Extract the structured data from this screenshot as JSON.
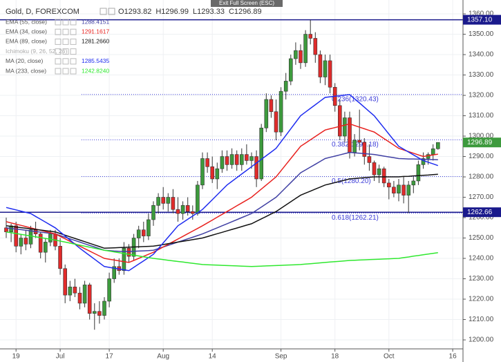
{
  "header": {
    "symbol": "Gold, D, FOREXCOM",
    "ohlc_keys": [
      "O",
      "H",
      "L",
      "C"
    ],
    "tooltip": "Exit Full Screen (ESC)",
    "hidden_study": "Ichimoku (9, 26, 52, 26)"
  },
  "chart_data": {
    "type": "candlestick",
    "categories": [
      null,
      null,
      "19",
      null,
      null,
      null,
      null,
      null,
      null,
      null,
      null,
      "Jul",
      null,
      null,
      null,
      null,
      null,
      null,
      null,
      null,
      null,
      "17",
      null,
      null,
      null,
      null,
      null,
      null,
      null,
      null,
      null,
      null,
      "Aug",
      null,
      null,
      null,
      null,
      null,
      null,
      null,
      null,
      null,
      "14",
      null,
      null,
      null,
      null,
      null,
      null,
      null,
      null,
      null,
      null,
      null,
      null,
      null,
      "Sep",
      null,
      null,
      null,
      null,
      null,
      null,
      null,
      null,
      null,
      null,
      "18",
      null,
      null,
      null,
      null,
      null,
      null,
      null,
      null,
      null,
      null,
      "Oct",
      null,
      null,
      null,
      null,
      null,
      null,
      null,
      null,
      null,
      null,
      null,
      null,
      "16"
    ],
    "open": [
      1255,
      1253,
      1256,
      1246,
      1250,
      1247,
      1254,
      1252,
      1243,
      1248,
      1252,
      1246,
      1235,
      1222,
      1226,
      1223,
      1218,
      1227,
      1213,
      1214,
      1212,
      1219,
      1230,
      1236,
      1234,
      1245,
      1241,
      1250,
      1254,
      1251,
      1259,
      1266,
      1270,
      1267,
      1270,
      1264,
      1262,
      1266,
      1263,
      1262,
      1276,
      1289,
      1285,
      1279,
      1284,
      1290,
      1286,
      1291,
      1286,
      1291,
      1288,
      1290,
      1279,
      1304,
      1318,
      1312,
      1302,
      1322,
      1327,
      1338,
      1342,
      1336,
      1350,
      1348,
      1340,
      1329,
      1337,
      1324,
      1315,
      1300,
      1309,
      1292,
      1298,
      1297,
      1290,
      1287,
      1281,
      1284,
      1277,
      1275,
      1272,
      1276,
      1271,
      1276,
      1278,
      1286,
      1289,
      1291,
      1293.82,
      null,
      null,
      null
    ],
    "high": [
      1260,
      1257,
      1258,
      1252,
      1254,
      1256,
      1258,
      1253,
      1250,
      1254,
      1254,
      1250,
      1237,
      1229,
      1230,
      1226,
      1229,
      1228,
      1218,
      1219,
      1221,
      1233,
      1240,
      1240,
      1248,
      1247,
      1252,
      1256,
      1258,
      1262,
      1268,
      1272,
      1275,
      1272,
      1274,
      1270,
      1268,
      1270,
      1266,
      1278,
      1292,
      1292,
      1290,
      1287,
      1293,
      1293,
      1294,
      1293,
      1294,
      1296,
      1292,
      1293,
      1306,
      1321,
      1320,
      1318,
      1324,
      1331,
      1340,
      1346,
      1345,
      1352,
      1357.1,
      1351,
      1342,
      1340,
      1340,
      1326,
      1318,
      1312,
      1312,
      1301,
      1313,
      1299,
      1296,
      1288,
      1286,
      1285,
      1279,
      1278,
      1279,
      1280,
      1278,
      1280,
      1288,
      1292,
      1292,
      1296,
      1296.99,
      null,
      null,
      null
    ],
    "low": [
      1250,
      1248,
      1243,
      1242,
      1244,
      1245,
      1250,
      1240,
      1238,
      1246,
      1244,
      1232,
      1218,
      1219,
      1221,
      1215,
      1216,
      1210,
      1205,
      1208,
      1210,
      1216,
      1228,
      1232,
      1232,
      1238,
      1239,
      1245,
      1248,
      1249,
      1256,
      1262,
      1264,
      1263,
      1262,
      1258,
      1259,
      1261,
      1259,
      1261,
      1274,
      1282,
      1277,
      1274,
      1282,
      1283,
      1284,
      1283,
      1283,
      1286,
      1284,
      1275,
      1278,
      1302,
      1309,
      1298,
      1300,
      1318,
      1325,
      1335,
      1333,
      1334,
      1345,
      1336,
      1326,
      1325,
      1321,
      1312,
      1298,
      1297,
      1289,
      1290,
      1293,
      1286,
      1283,
      1278,
      1277,
      1275,
      1269,
      1270,
      1268,
      1267,
      1262.2,
      1272,
      1276,
      1284,
      1286,
      1288,
      1293.33,
      null,
      null,
      null
    ],
    "close": [
      1253,
      1256,
      1246,
      1250,
      1247,
      1254,
      1252,
      1243,
      1248,
      1252,
      1246,
      1235,
      1222,
      1226,
      1223,
      1218,
      1227,
      1213,
      1214,
      1212,
      1219,
      1230,
      1236,
      1234,
      1245,
      1241,
      1250,
      1254,
      1251,
      1259,
      1266,
      1270,
      1267,
      1270,
      1264,
      1262,
      1266,
      1263,
      1262,
      1276,
      1289,
      1285,
      1279,
      1284,
      1290,
      1286,
      1291,
      1286,
      1291,
      1288,
      1290,
      1279,
      1304,
      1318,
      1312,
      1302,
      1322,
      1327,
      1338,
      1342,
      1336,
      1350,
      1348,
      1340,
      1329,
      1337,
      1324,
      1315,
      1300,
      1309,
      1292,
      1298,
      1297,
      1290,
      1287,
      1281,
      1284,
      1277,
      1275,
      1272,
      1276,
      1271,
      1276,
      1278,
      1286,
      1289,
      1291,
      1293.8,
      1296.89,
      null,
      null,
      null
    ],
    "up_color": "#3d9a3d",
    "down_color": "#e02b2b",
    "price_color": "#3d9a3d",
    "series": [
      {
        "name": "EMA (55, close)",
        "color": "#3f3fa3",
        "legend_value": "1288.4151",
        "values": [
          1255,
          1254.7,
          1254.4,
          1254.1,
          1253.8,
          1253.5,
          1253.2,
          1252.9,
          1252.6,
          1252.3,
          1252,
          1251.2,
          1250.4,
          1249.6,
          1248.8,
          1248,
          1247.2,
          1246.4,
          1245.6,
          1244.8,
          1244,
          1243.8,
          1243.6,
          1243.5,
          1243.4,
          1243.4,
          1243.5,
          1243.6,
          1243.7,
          1243.8,
          1244,
          1244.8,
          1245.6,
          1246.4,
          1247.2,
          1248,
          1248.8,
          1249.6,
          1250.4,
          1251.2,
          1252,
          1253,
          1254,
          1255,
          1256,
          1257,
          1258,
          1259,
          1260,
          1261,
          1262,
          1263.6,
          1265.2,
          1266.8,
          1268.4,
          1270,
          1272.4,
          1274.8,
          1277.2,
          1279.6,
          1282,
          1283.4,
          1284.8,
          1286.2,
          1287.6,
          1289,
          1289.6,
          1290.2,
          1290.8,
          1291.4,
          1292,
          1291.8,
          1291.6,
          1291.4,
          1291.2,
          1291,
          1290.6,
          1290.2,
          1289.8,
          1289.4,
          1289,
          1288.9,
          1288.8,
          1288.8,
          1288.7,
          1288.6,
          1288.5,
          1288.5,
          1288.4151,
          null,
          null,
          null
        ]
      },
      {
        "name": "EMA (34, close)",
        "color": "#e8211e",
        "legend_value": "1291.1617",
        "values": [
          1258,
          1257.4,
          1256.8,
          1256.2,
          1255.6,
          1255,
          1254.4,
          1253.8,
          1253.2,
          1252.6,
          1252,
          1250.8,
          1249.6,
          1248.4,
          1247.2,
          1246,
          1244.8,
          1243.6,
          1242.4,
          1241.2,
          1240,
          1239.6,
          1239.2,
          1238.8,
          1238.4,
          1238,
          1239,
          1240,
          1241,
          1242,
          1243,
          1244.3,
          1245.6,
          1246.9,
          1248.2,
          1249.5,
          1250.8,
          1252.1,
          1253.4,
          1254.7,
          1256,
          1257.4,
          1258.8,
          1260.2,
          1261.6,
          1263,
          1264.4,
          1265.8,
          1267.2,
          1268.6,
          1270,
          1272,
          1274,
          1276,
          1278,
          1280,
          1283,
          1286,
          1289,
          1292,
          1295,
          1296.6,
          1298.2,
          1299.8,
          1301.4,
          1303,
          1303.6,
          1304.2,
          1304.8,
          1305.4,
          1306,
          1305.2,
          1304.4,
          1303.6,
          1302.8,
          1302,
          1300.4,
          1298.8,
          1297.2,
          1295.6,
          1294,
          1293.2,
          1292.4,
          1291.6,
          1290.8,
          1290,
          1290.4,
          1290.8,
          1291.1617,
          null,
          null,
          null
        ]
      },
      {
        "name": "EMA (89, close)",
        "color": "#111111",
        "legend_value": "1281.2660",
        "values": [
          1256,
          1255.7,
          1255.4,
          1255.1,
          1254.8,
          1254.5,
          1254.2,
          1253.9,
          1253.6,
          1253.3,
          1253,
          1252.2,
          1251.4,
          1250.6,
          1249.8,
          1249,
          1248.2,
          1247.4,
          1246.6,
          1245.8,
          1245,
          1245.1,
          1245.2,
          1245.3,
          1245.4,
          1245.5,
          1245.6,
          1245.7,
          1245.8,
          1245.9,
          1246,
          1246.4,
          1246.8,
          1247.2,
          1247.6,
          1248,
          1248.4,
          1248.8,
          1249.2,
          1249.6,
          1250,
          1250.7,
          1251.4,
          1252.1,
          1252.8,
          1253.5,
          1254.2,
          1254.9,
          1255.6,
          1256.3,
          1257,
          1258.2,
          1259.4,
          1260.6,
          1261.8,
          1263,
          1264.6,
          1266.2,
          1267.8,
          1269.4,
          1271,
          1272,
          1273,
          1274,
          1275,
          1276,
          1276.6,
          1277.2,
          1277.8,
          1278.4,
          1279,
          1279.2,
          1279.4,
          1279.6,
          1279.8,
          1280,
          1280,
          1280,
          1280,
          1280,
          1280,
          1280.2,
          1280.3,
          1280.5,
          1280.6,
          1280.8,
          1280.9,
          1281.1,
          1281.266,
          null,
          null,
          null
        ]
      },
      {
        "name": "MA (20, close)",
        "color": "#1e2cf0",
        "legend_value": "1285.5435",
        "values": [
          1265,
          1264.4,
          1263.8,
          1263.2,
          1262.6,
          1262,
          1260.6,
          1259.2,
          1257.8,
          1256.4,
          1255,
          1253,
          1251,
          1249,
          1247,
          1245,
          1243.2,
          1241.4,
          1239.6,
          1237.8,
          1236,
          1235.6,
          1235.2,
          1234.8,
          1234.4,
          1234,
          1235.6,
          1237.2,
          1238.8,
          1240.4,
          1242,
          1244.8,
          1247.6,
          1250.4,
          1253.2,
          1256,
          1257.6,
          1259.2,
          1260.8,
          1262.4,
          1264,
          1266.4,
          1268.8,
          1271.2,
          1273.6,
          1276,
          1277.8,
          1279.6,
          1281.4,
          1283.2,
          1285,
          1286.8,
          1288.6,
          1290.4,
          1292.2,
          1294,
          1297.2,
          1300.4,
          1303.6,
          1306.8,
          1310,
          1311.8,
          1313.6,
          1315.4,
          1317.2,
          1319,
          1319.3,
          1319.6,
          1319.8,
          1320.1,
          1320.4,
          1318.3,
          1316.3,
          1314.2,
          1312.1,
          1310,
          1307,
          1304,
          1301,
          1298,
          1295,
          1293.6,
          1292.2,
          1290.8,
          1289.4,
          1288,
          1287.2,
          1286.4,
          1285.5435,
          null,
          null,
          null
        ]
      },
      {
        "name": "MA (233, close)",
        "color": "#2ee82e",
        "legend_value": "1242.8240",
        "values": [
          1253,
          1252.6,
          1252.2,
          1251.8,
          1251.4,
          1251,
          1250.6,
          1250.2,
          1249.8,
          1249.4,
          1249,
          1248.5,
          1248,
          1247.5,
          1247,
          1246.5,
          1246,
          1245.5,
          1245,
          1244.5,
          1244,
          1243.6,
          1243.2,
          1242.8,
          1242.4,
          1242,
          1241.6,
          1241.2,
          1240.8,
          1240.4,
          1240,
          1239.7,
          1239.4,
          1239.1,
          1238.8,
          1238.5,
          1238.2,
          1237.9,
          1237.6,
          1237.3,
          1237,
          1236.9,
          1236.8,
          1236.7,
          1236.6,
          1236.5,
          1236.4,
          1236.3,
          1236.2,
          1236.1,
          1236,
          1236.1,
          1236.2,
          1236.3,
          1236.4,
          1236.5,
          1236.6,
          1236.7,
          1236.8,
          1236.9,
          1237,
          1237.2,
          1237.4,
          1237.6,
          1237.8,
          1238,
          1238.2,
          1238.4,
          1238.6,
          1238.8,
          1239,
          1239.1,
          1239.2,
          1239.3,
          1239.4,
          1239.5,
          1239.6,
          1239.7,
          1239.8,
          1239.9,
          1240,
          1240.4,
          1240.7,
          1241.1,
          1241.4,
          1241.8,
          1242.1,
          1242.5,
          1242.824,
          null,
          null,
          null
        ]
      }
    ],
    "hlines": [
      {
        "value": 1357.1,
        "label": "1357.10",
        "color": "#1a1a8c"
      },
      {
        "value": 1262.66,
        "label": "1262.66",
        "color": "#1a1a8c"
      }
    ],
    "fib_levels": [
      {
        "value": 1320.43,
        "label": "0.236(1320.43)"
      },
      {
        "value": 1298.18,
        "label": "0.382(1298.18)"
      },
      {
        "value": 1280.2,
        "label": "0.5(1280.20)"
      },
      {
        "value": 1262.21,
        "label": "0.618(1262.21)"
      }
    ],
    "fib_color": "#3c3cd8",
    "ylim": [
      1195.6,
      1366.8
    ],
    "yticks": [
      {
        "value": 1200,
        "label": "1200.00"
      },
      {
        "value": 1210,
        "label": "1210.00"
      },
      {
        "value": 1220,
        "label": "1220.00"
      },
      {
        "value": 1230,
        "label": "1230.00"
      },
      {
        "value": 1240,
        "label": "1240.00"
      },
      {
        "value": 1250,
        "label": "1250.00"
      },
      {
        "value": 1260,
        "label": "1260.00"
      },
      {
        "value": 1270,
        "label": "1270.00"
      },
      {
        "value": 1280,
        "label": "1280.00"
      },
      {
        "value": 1290,
        "label": "1290.00"
      },
      {
        "value": 1300,
        "label": "1300.00"
      },
      {
        "value": 1310,
        "label": "1310.00"
      },
      {
        "value": 1320,
        "label": "1320.00"
      },
      {
        "value": 1330,
        "label": "1330.00"
      },
      {
        "value": 1340,
        "label": "1340.00"
      },
      {
        "value": 1350,
        "label": "1350.00"
      },
      {
        "value": 1360,
        "label": "1360.00"
      }
    ],
    "grid": true
  }
}
